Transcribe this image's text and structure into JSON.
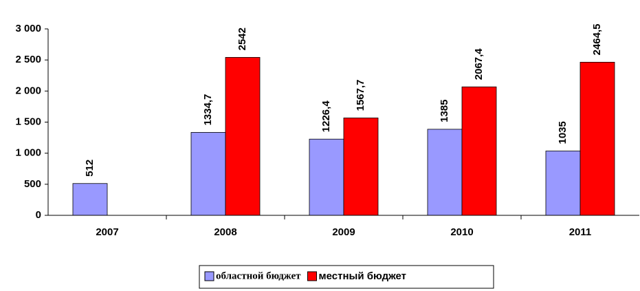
{
  "chart_data": {
    "type": "bar",
    "categories": [
      "2007",
      "2008",
      "2009",
      "2010",
      "2011"
    ],
    "series": [
      {
        "name": "областной бюджет",
        "color": "#9999ff",
        "values": [
          512,
          1334.7,
          1226.4,
          1385,
          1035
        ],
        "value_labels": [
          "512",
          "1334,7",
          "1226,4",
          "1385",
          "1035"
        ]
      },
      {
        "name": "местный бюджет",
        "color": "#ff0000",
        "values": [
          null,
          2542,
          1567.7,
          2067.4,
          2464.5
        ],
        "value_labels": [
          null,
          "2542",
          "1567,7",
          "2067,4",
          "2464,5"
        ]
      }
    ],
    "ylim": [
      0,
      3000
    ],
    "yticks": [
      0,
      500,
      {
        "value": 1000,
        "label": "1 000"
      },
      {
        "value": 1500,
        "label": "1 500"
      },
      {
        "value": 2000,
        "label": "2 000"
      },
      {
        "value": 2500,
        "label": "2 500"
      },
      {
        "value": 3000,
        "label": "3 000"
      }
    ],
    "legend": "bottom"
  }
}
